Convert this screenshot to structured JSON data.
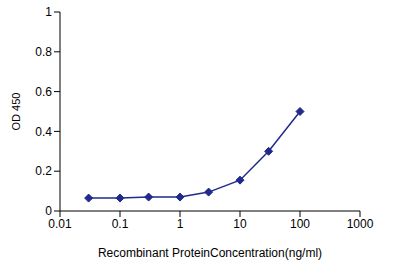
{
  "chart_data": {
    "type": "line",
    "x_label": "Recombinant ProteinConcentration(ng/ml)",
    "y_label": "OD 450",
    "x": [
      0.03,
      0.1,
      0.3,
      1,
      3,
      10,
      30,
      100
    ],
    "values": [
      0.065,
      0.065,
      0.07,
      0.07,
      0.095,
      0.155,
      0.3,
      0.5
    ],
    "color": "#1f2a8a",
    "marker": "diamond",
    "log": "x",
    "xlim": [
      0.01,
      1000
    ],
    "xticks": [
      0.01,
      0.1,
      1,
      10,
      100,
      1000
    ],
    "ylim": [
      0,
      1
    ],
    "yticks": [
      0,
      0.2,
      0.4,
      0.6,
      0.8,
      1
    ],
    "grid": false
  }
}
